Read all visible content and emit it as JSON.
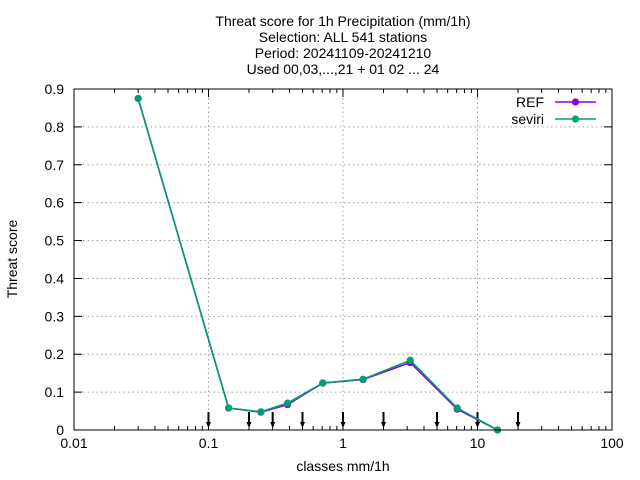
{
  "chart_data": {
    "type": "line",
    "title_lines": [
      "Threat score  for 1h Precipitation (mm/1h)",
      "Selection: ALL    541 stations",
      "Period: 20241109-20241210",
      "Used 00,03,...,21 + 01 02 ... 24"
    ],
    "xlabel": "classes mm/1h",
    "ylabel": "Threat score",
    "x_scale": "log",
    "xlim": [
      0.01,
      100
    ],
    "ylim": [
      0,
      0.9
    ],
    "x_ticks": [
      0.01,
      0.1,
      1,
      10,
      100
    ],
    "x_tick_labels": [
      "0.01",
      "0.1",
      "1",
      "10",
      "100"
    ],
    "y_ticks": [
      0,
      0.1,
      0.2,
      0.3,
      0.4,
      0.5,
      0.6,
      0.7,
      0.8,
      0.9
    ],
    "y_tick_labels": [
      "0",
      "0.1",
      "0.2",
      "0.3",
      "0.4",
      "0.5",
      "0.6",
      "0.7",
      "0.8",
      "0.9"
    ],
    "grid": true,
    "legend_position": "top-right",
    "class_edges": [
      0.1,
      0.2,
      0.3,
      0.5,
      1,
      2,
      5,
      10,
      20
    ],
    "series": [
      {
        "name": "REF",
        "color": "#9400d3",
        "x": [
          0.03,
          0.141,
          0.245,
          0.387,
          0.707,
          1.41,
          3.16,
          7.07,
          14.1
        ],
        "y": [
          0.875,
          0.058,
          0.047,
          0.067,
          0.124,
          0.133,
          0.178,
          0.055,
          0.0
        ]
      },
      {
        "name": "seviri",
        "color": "#009e73",
        "x": [
          0.03,
          0.141,
          0.245,
          0.387,
          0.707,
          1.41,
          3.16,
          7.07,
          14.1
        ],
        "y": [
          0.875,
          0.058,
          0.048,
          0.071,
          0.124,
          0.134,
          0.184,
          0.058,
          0.0
        ]
      }
    ]
  }
}
